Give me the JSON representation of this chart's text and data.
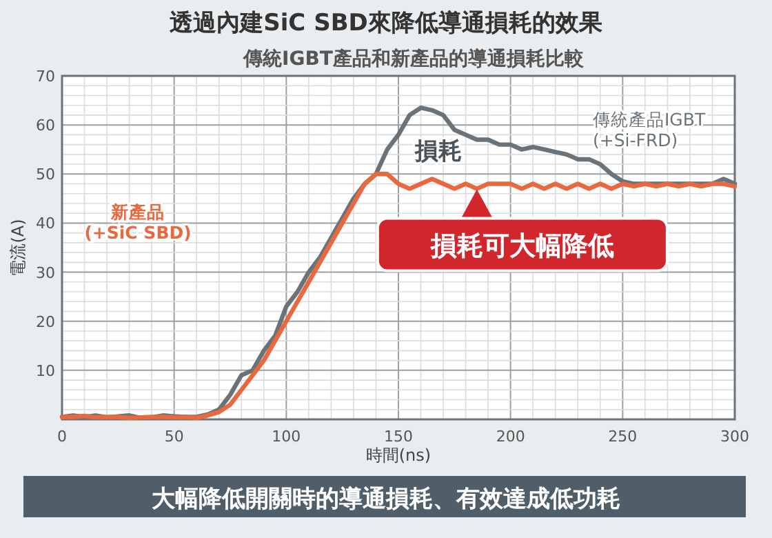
{
  "chart_data": {
    "type": "line",
    "title": "透過內建SiC SBD來降低導通損耗的效果",
    "subtitle": "傳統IGBT產品和新產品的導通損耗比較",
    "xlabel": "時間(ns)",
    "ylabel": "電流(A)",
    "x": [
      0,
      5,
      10,
      15,
      20,
      25,
      30,
      35,
      40,
      45,
      50,
      55,
      60,
      65,
      70,
      75,
      80,
      85,
      90,
      95,
      100,
      105,
      110,
      115,
      120,
      125,
      130,
      135,
      140,
      145,
      150,
      155,
      160,
      165,
      170,
      175,
      180,
      185,
      190,
      195,
      200,
      205,
      210,
      215,
      220,
      225,
      230,
      235,
      240,
      245,
      250,
      255,
      260,
      265,
      270,
      275,
      280,
      285,
      290,
      295,
      300
    ],
    "series": [
      {
        "name": "傳統產品IGBT\n(+Si-FRD)",
        "color": "#6b7378",
        "values": [
          0.5,
          0.8,
          0.5,
          0.8,
          0.4,
          0.6,
          0.8,
          0.3,
          0.4,
          0.8,
          0.6,
          0.5,
          0.5,
          1,
          2,
          5,
          9,
          10,
          14,
          17,
          23,
          26,
          30,
          33,
          37,
          41,
          45,
          48,
          50,
          55,
          58,
          62,
          63.5,
          63,
          62,
          59,
          58,
          57,
          57,
          56,
          56,
          55,
          55.5,
          55,
          54.5,
          54,
          53,
          53,
          52,
          50,
          48.5,
          48,
          48,
          48,
          48,
          48,
          48,
          48,
          48,
          49,
          48
        ]
      },
      {
        "name": "新產品\n(+SiC SBD)",
        "color": "#e8683f",
        "values": [
          0.5,
          0.5,
          0.7,
          0.4,
          0.5,
          0.5,
          0.3,
          0.4,
          0.5,
          0.5,
          0.4,
          0.5,
          0.3,
          0.8,
          1.5,
          3,
          6,
          9,
          12,
          16,
          20,
          24,
          28,
          32,
          36,
          40,
          44,
          48,
          50,
          50,
          48,
          47,
          48,
          49,
          48,
          47,
          48,
          47,
          48,
          48,
          48,
          47,
          48,
          47,
          48,
          47,
          48,
          47,
          48,
          47,
          48,
          47.5,
          48,
          47.5,
          48,
          47.5,
          48,
          47.5,
          48,
          48,
          47.5
        ]
      }
    ],
    "xlim": [
      0,
      300
    ],
    "xticks": [
      0,
      50,
      100,
      150,
      200,
      250,
      300
    ],
    "ylim": [
      0,
      70
    ],
    "yticks": [
      {
        "value": 0,
        "label": null
      },
      10,
      20,
      30,
      40,
      50,
      60,
      70
    ],
    "grid": true,
    "legend": false,
    "marker": "none",
    "line_style": "solid",
    "annotations": [
      "損耗",
      {
        "text": "損耗可大幅降低",
        "x": 185,
        "y": 48
      },
      "大幅降低開關時的導通損耗、有效達成低功耗"
    ]
  }
}
